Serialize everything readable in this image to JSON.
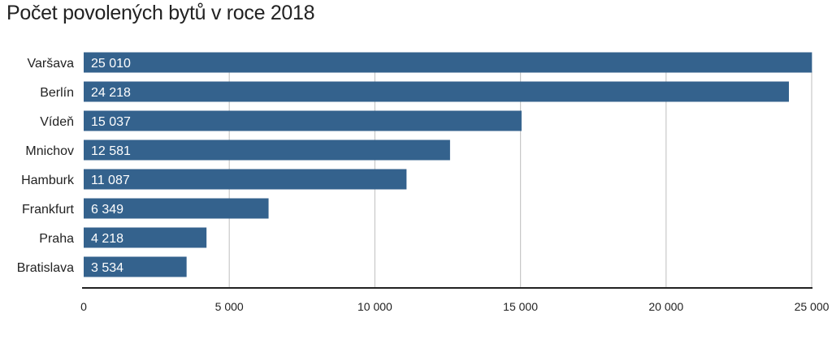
{
  "title": "Počet povolených bytů v roce 2018",
  "chart_data": {
    "type": "bar",
    "orientation": "horizontal",
    "title": "Počet povolených bytů v roce 2018",
    "categories": [
      "Varšava",
      "Berlín",
      "Vídeň",
      "Mnichov",
      "Hamburk",
      "Frankfurt",
      "Praha",
      "Bratislava"
    ],
    "values": [
      25010,
      24218,
      15037,
      12581,
      11087,
      6349,
      4218,
      3534
    ],
    "value_labels": [
      "25 010",
      "24 218",
      "15 037",
      "12 581",
      "11 087",
      "6 349",
      "4 218",
      "3 534"
    ],
    "xlim": [
      0,
      25000
    ],
    "xticks": [
      0,
      5000,
      10000,
      15000,
      20000,
      25000
    ],
    "xtick_labels": [
      "0",
      "5 000",
      "10 000",
      "15 000",
      "20 000",
      "25 000"
    ],
    "xlabel": "",
    "ylabel": "",
    "grid": true,
    "bar_color": "#34628d",
    "grid_color": "#c8c8c8"
  }
}
